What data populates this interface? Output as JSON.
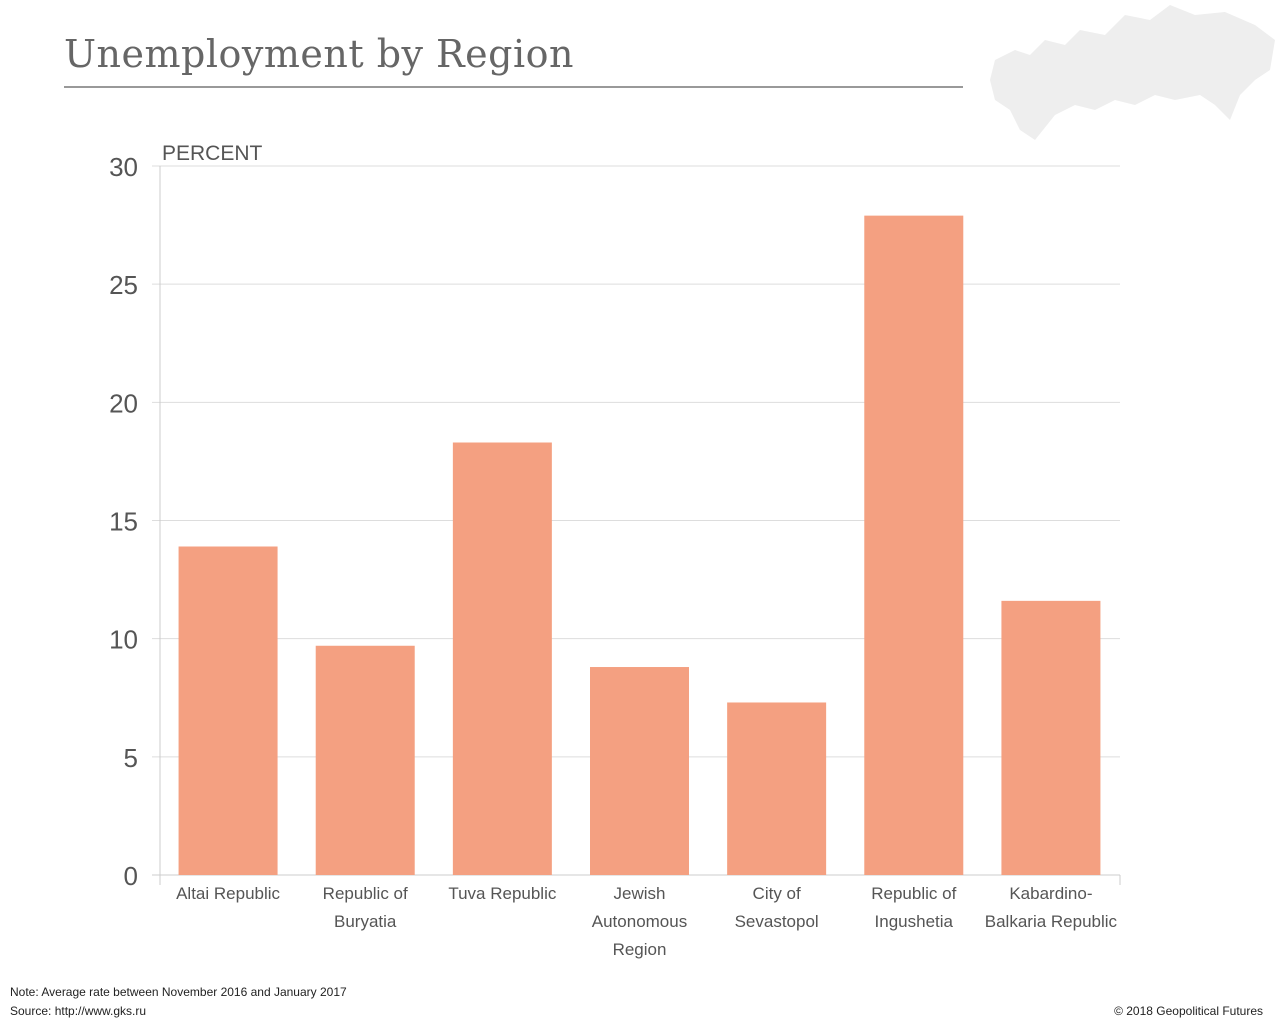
{
  "title": "Unemployment by Region",
  "footer": {
    "note": "Note: Average rate between November 2016 and January 2017",
    "source": "Source: http://www.gks.ru",
    "copyright": "© 2018 Geopolitical Futures"
  },
  "colors": {
    "bar": "#f4a081",
    "grid": "#dddddd",
    "text": "#555555",
    "map": "#eeeeee"
  },
  "chart_data": {
    "type": "bar",
    "title": "Unemployment by Region",
    "ylabel": "PERCENT",
    "xlabel": "",
    "ylim": [
      0,
      30
    ],
    "yticks": [
      0,
      5,
      10,
      15,
      20,
      25,
      30
    ],
    "grid": true,
    "categories": [
      [
        "Altai Republic"
      ],
      [
        "Republic of",
        "Buryatia"
      ],
      [
        "Tuva Republic"
      ],
      [
        "Jewish",
        "Autonomous",
        "Region"
      ],
      [
        "City of",
        "Sevastopol"
      ],
      [
        "Republic of",
        "Ingushetia"
      ],
      [
        "Kabardino-",
        "Balkaria Republic"
      ]
    ],
    "values": [
      13.9,
      9.7,
      18.3,
      8.8,
      7.3,
      27.9,
      11.6
    ]
  }
}
